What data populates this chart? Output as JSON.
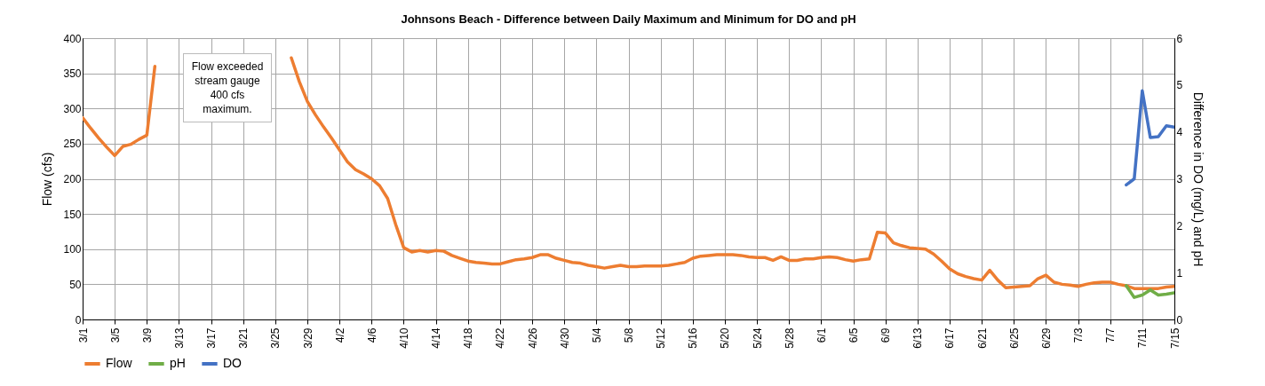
{
  "chart_data": {
    "type": "line",
    "title": "Johnsons Beach - Difference between Daily Maximum and Minimum for DO and pH",
    "xlabel": null,
    "ylabel": "Flow (cfs)",
    "y2label": "Difference in DO (mg/L) and pH",
    "categories": [
      "3/1",
      null,
      null,
      null,
      "3/5",
      null,
      null,
      null,
      "3/9",
      null,
      null,
      null,
      "3/13",
      null,
      null,
      null,
      "3/17",
      null,
      null,
      null,
      "3/21",
      null,
      null,
      null,
      "3/25",
      null,
      null,
      null,
      "3/29",
      null,
      null,
      null,
      "4/2",
      null,
      null,
      null,
      "4/6",
      null,
      null,
      null,
      "4/10",
      null,
      null,
      null,
      "4/14",
      null,
      null,
      null,
      "4/18",
      null,
      null,
      null,
      "4/22",
      null,
      null,
      null,
      "4/26",
      null,
      null,
      null,
      "4/30",
      null,
      null,
      null,
      "5/4",
      null,
      null,
      null,
      "5/8",
      null,
      null,
      null,
      "5/12",
      null,
      null,
      null,
      "5/16",
      null,
      null,
      null,
      "5/20",
      null,
      null,
      null,
      "5/24",
      null,
      null,
      null,
      "5/28",
      null,
      null,
      null,
      "6/1",
      null,
      null,
      null,
      "6/5",
      null,
      null,
      null,
      "6/9",
      null,
      null,
      null,
      "6/13",
      null,
      null,
      null,
      "6/17",
      null,
      null,
      null,
      "6/21",
      null,
      null,
      null,
      "6/25",
      null,
      null,
      null,
      "6/29",
      null,
      null,
      null,
      "7/3",
      null,
      null,
      null,
      "7/7",
      null,
      null,
      null,
      "7/11",
      null,
      null,
      null,
      "7/15"
    ],
    "series": [
      {
        "name": "Flow",
        "color": "#ed7d31",
        "values": [
          287,
          272,
          258,
          245,
          233,
          246,
          249,
          256,
          262,
          360,
          null,
          null,
          null,
          null,
          null,
          null,
          null,
          null,
          null,
          null,
          null,
          null,
          null,
          null,
          null,
          null,
          372,
          338,
          310,
          291,
          274,
          258,
          241,
          224,
          213,
          207,
          200,
          190,
          172,
          135,
          102,
          96,
          98,
          96,
          98,
          97,
          91,
          87,
          83,
          81,
          80,
          79,
          79,
          82,
          85,
          86,
          88,
          92,
          92,
          87,
          84,
          81,
          80,
          77,
          75,
          73,
          75,
          77,
          75,
          75,
          76,
          76,
          76,
          77,
          79,
          81,
          87,
          90,
          91,
          92,
          92,
          92,
          91,
          89,
          88,
          88,
          84,
          89,
          84,
          84,
          86,
          86,
          88,
          89,
          88,
          85,
          83,
          85,
          86,
          124,
          123,
          109,
          105,
          102,
          101,
          100,
          93,
          83,
          72,
          65,
          61,
          58,
          56,
          70,
          56,
          45,
          46,
          47,
          48,
          58,
          63,
          53,
          50,
          49,
          47,
          50,
          52,
          53,
          53,
          50,
          48,
          44,
          44,
          44,
          44,
          46,
          47
        ]
      },
      {
        "name": "pH",
        "color": "#70ad47",
        "axis": "y2",
        "values": [
          null,
          null,
          null,
          null,
          null,
          null,
          null,
          null,
          null,
          null,
          null,
          null,
          null,
          null,
          null,
          null,
          null,
          null,
          null,
          null,
          null,
          null,
          null,
          null,
          null,
          null,
          null,
          null,
          null,
          null,
          null,
          null,
          null,
          null,
          null,
          null,
          null,
          null,
          null,
          null,
          null,
          null,
          null,
          null,
          null,
          null,
          null,
          null,
          null,
          null,
          null,
          null,
          null,
          null,
          null,
          null,
          null,
          null,
          null,
          null,
          null,
          null,
          null,
          null,
          null,
          null,
          null,
          null,
          null,
          null,
          null,
          null,
          null,
          null,
          null,
          null,
          null,
          null,
          null,
          null,
          null,
          null,
          null,
          null,
          null,
          null,
          null,
          null,
          null,
          null,
          null,
          null,
          null,
          null,
          null,
          null,
          null,
          null,
          null,
          null,
          null,
          null,
          null,
          null,
          null,
          null,
          null,
          null,
          null,
          null,
          null,
          null,
          null,
          null,
          null,
          null,
          null,
          null,
          null,
          null,
          null,
          null,
          null,
          null,
          null,
          null,
          null,
          null,
          null,
          null,
          0.72,
          0.47,
          0.52,
          0.63,
          0.52,
          0.54,
          0.57
        ]
      },
      {
        "name": "DO",
        "color": "#4472c4",
        "axis": "y2",
        "values": [
          null,
          null,
          null,
          null,
          null,
          null,
          null,
          null,
          null,
          null,
          null,
          null,
          null,
          null,
          null,
          null,
          null,
          null,
          null,
          null,
          null,
          null,
          null,
          null,
          null,
          null,
          null,
          null,
          null,
          null,
          null,
          null,
          null,
          null,
          null,
          null,
          null,
          null,
          null,
          null,
          null,
          null,
          null,
          null,
          null,
          null,
          null,
          null,
          null,
          null,
          null,
          null,
          null,
          null,
          null,
          null,
          null,
          null,
          null,
          null,
          null,
          null,
          null,
          null,
          null,
          null,
          null,
          null,
          null,
          null,
          null,
          null,
          null,
          null,
          null,
          null,
          null,
          null,
          null,
          null,
          null,
          null,
          null,
          null,
          null,
          null,
          null,
          null,
          null,
          null,
          null,
          null,
          null,
          null,
          null,
          null,
          null,
          null,
          null,
          null,
          null,
          null,
          null,
          null,
          null,
          null,
          null,
          null,
          null,
          null,
          null,
          null,
          null,
          null,
          null,
          null,
          null,
          null,
          null,
          null,
          null,
          null,
          null,
          null,
          null,
          null,
          null,
          null,
          null,
          null,
          2.87,
          3.0,
          4.88,
          3.88,
          3.9,
          4.13,
          4.1
        ]
      }
    ],
    "ylim": [
      0,
      400
    ],
    "yticks": [
      0,
      50,
      100,
      150,
      200,
      250,
      300,
      350,
      400
    ],
    "y2lim": [
      0,
      6
    ],
    "y2ticks": [
      0,
      1,
      2,
      3,
      4,
      5,
      6
    ],
    "annotations": [
      "Flow exceeded stream gauge 400 cfs maximum."
    ],
    "grid": true,
    "legend": "bottom",
    "marker": "none",
    "line_style": "solid"
  }
}
